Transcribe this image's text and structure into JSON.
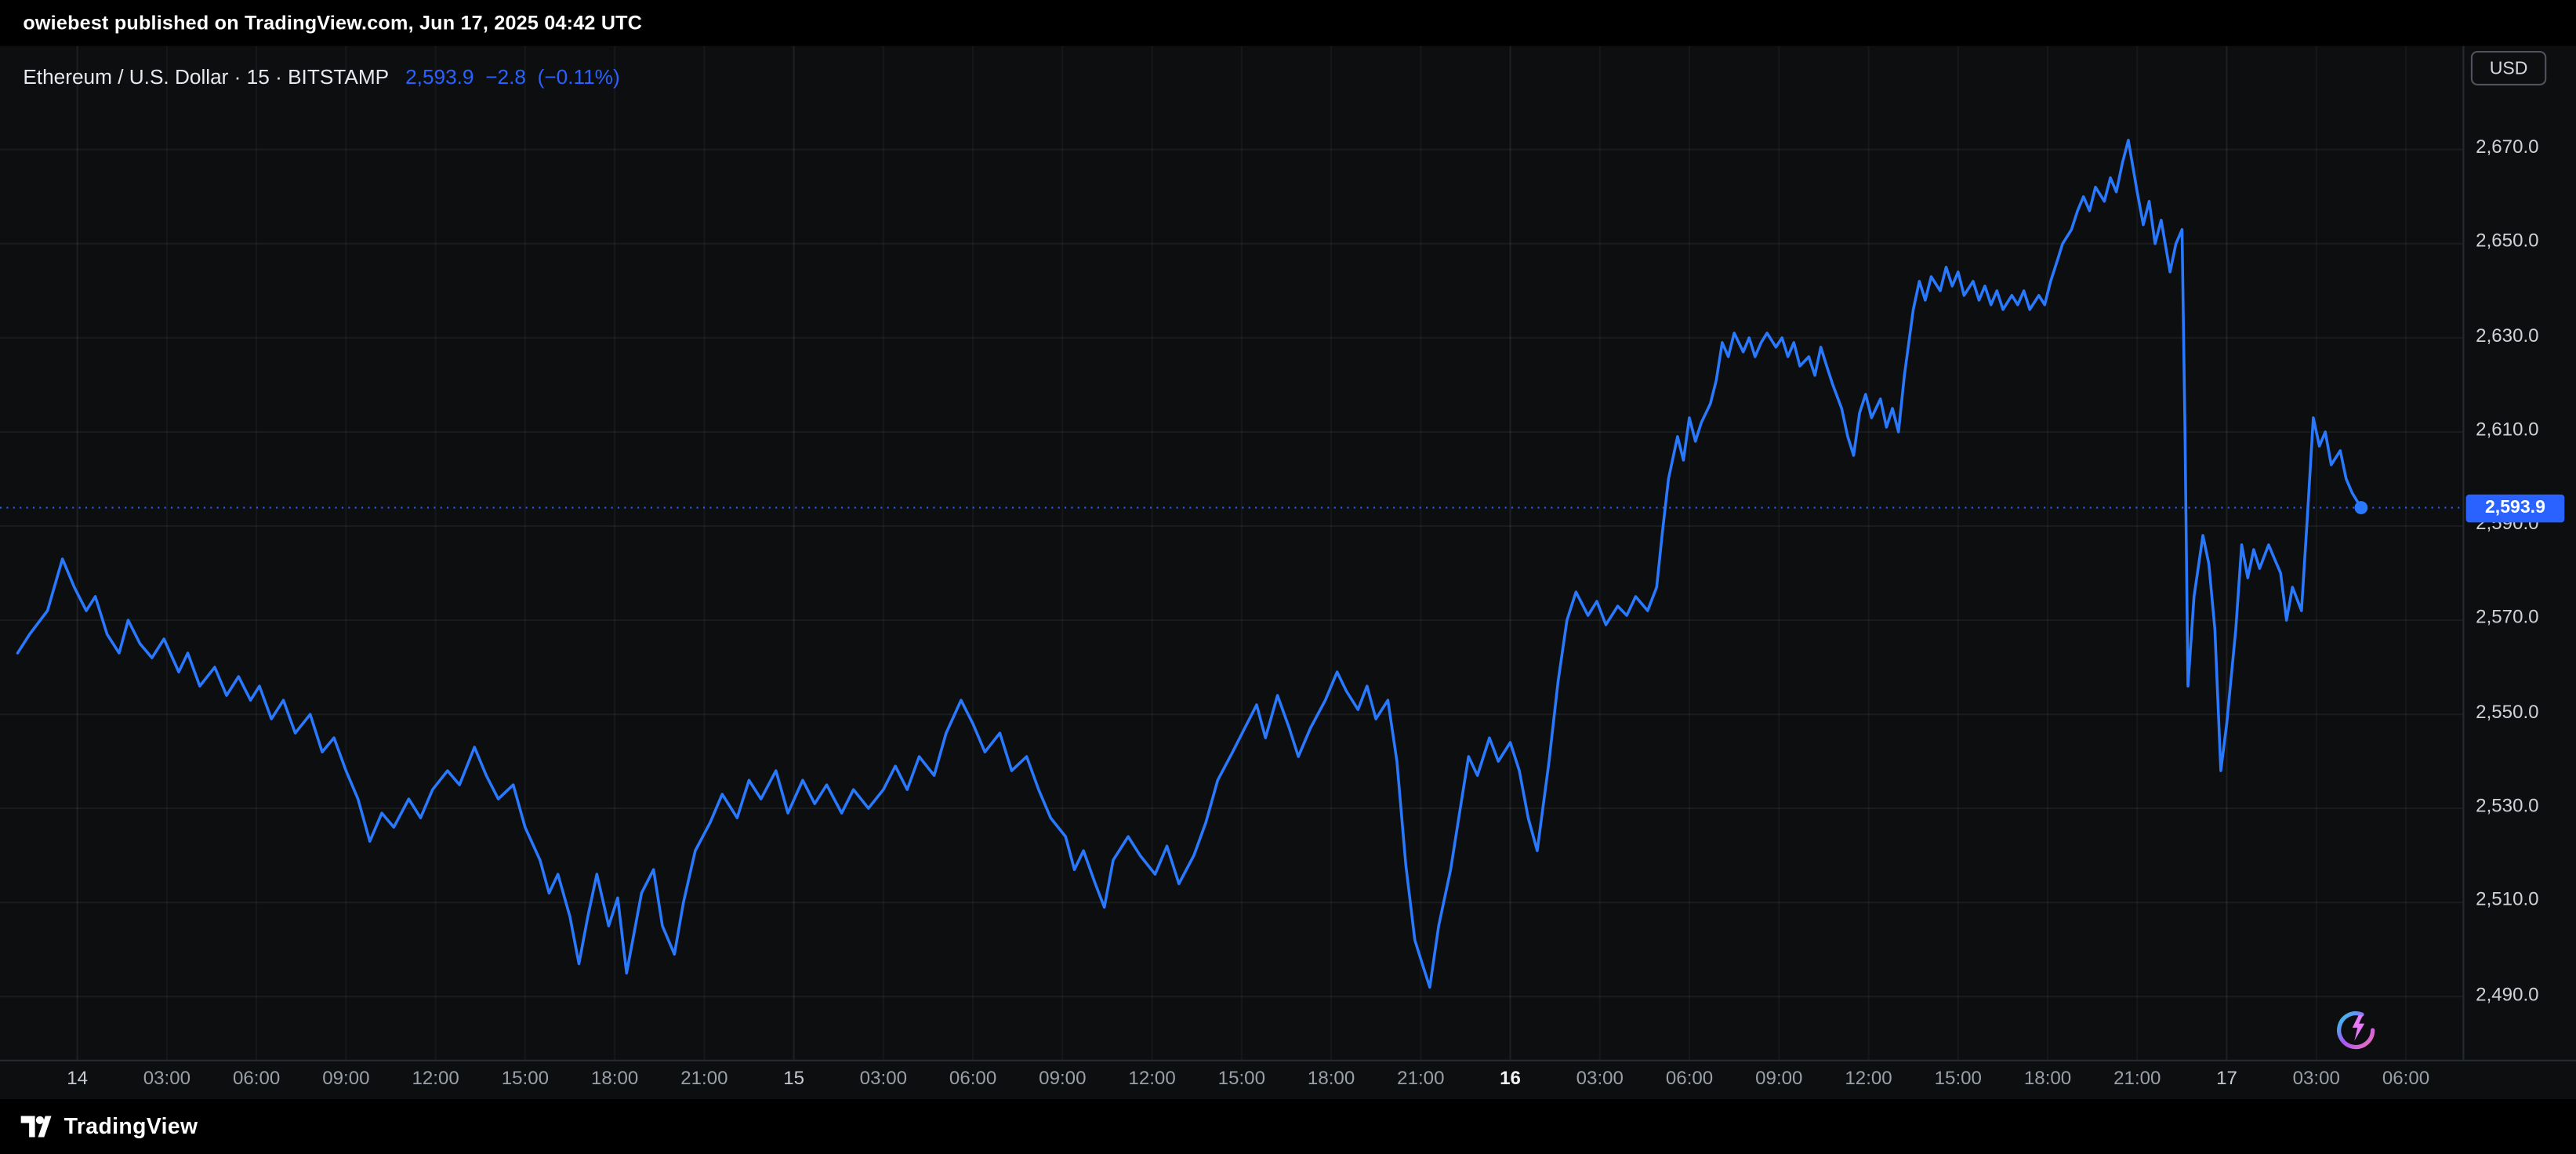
{
  "attribution": {
    "text": "owiebest published on TradingView.com, Jun 17, 2025 04:42 UTC"
  },
  "legend": {
    "symbol_title": "Ethereum / U.S. Dollar · 15 · BITSTAMP",
    "last_price": "2,593.9",
    "change": "−2.8",
    "change_percent": "(−0.11%)"
  },
  "price_axis": {
    "currency_label": "USD",
    "current_price_label": "2,593.9",
    "ticks": [
      {
        "value": 2670,
        "label": "2,670.0"
      },
      {
        "value": 2650,
        "label": "2,650.0"
      },
      {
        "value": 2630,
        "label": "2,630.0"
      },
      {
        "value": 2610,
        "label": "2,610.0"
      },
      {
        "value": 2590,
        "label": "2,590.0"
      },
      {
        "value": 2570,
        "label": "2,570.0"
      },
      {
        "value": 2550,
        "label": "2,550.0"
      },
      {
        "value": 2530,
        "label": "2,530.0"
      },
      {
        "value": 2510,
        "label": "2,510.0"
      },
      {
        "value": 2490,
        "label": "2,490.0"
      }
    ]
  },
  "time_axis": {
    "ticks": [
      {
        "t": 0,
        "label": "14",
        "day": true
      },
      {
        "t": 3,
        "label": "03:00"
      },
      {
        "t": 6,
        "label": "06:00"
      },
      {
        "t": 9,
        "label": "09:00"
      },
      {
        "t": 12,
        "label": "12:00"
      },
      {
        "t": 15,
        "label": "15:00"
      },
      {
        "t": 18,
        "label": "18:00"
      },
      {
        "t": 21,
        "label": "21:00"
      },
      {
        "t": 24,
        "label": "15",
        "day": true
      },
      {
        "t": 27,
        "label": "03:00"
      },
      {
        "t": 30,
        "label": "06:00"
      },
      {
        "t": 33,
        "label": "09:00"
      },
      {
        "t": 36,
        "label": "12:00"
      },
      {
        "t": 39,
        "label": "15:00"
      },
      {
        "t": 42,
        "label": "18:00"
      },
      {
        "t": 45,
        "label": "21:00"
      },
      {
        "t": 48,
        "label": "16",
        "day": true,
        "bold": true
      },
      {
        "t": 51,
        "label": "03:00"
      },
      {
        "t": 54,
        "label": "06:00"
      },
      {
        "t": 57,
        "label": "09:00"
      },
      {
        "t": 60,
        "label": "12:00"
      },
      {
        "t": 63,
        "label": "15:00"
      },
      {
        "t": 66,
        "label": "18:00"
      },
      {
        "t": 69,
        "label": "21:00"
      },
      {
        "t": 72,
        "label": "17",
        "day": true
      },
      {
        "t": 75,
        "label": "03:00"
      },
      {
        "t": 78,
        "label": "06:00"
      }
    ]
  },
  "footer": {
    "brand": "TradingView"
  },
  "colors": {
    "accent": "#2962FF",
    "line": "#2979FF",
    "price_tag_bg": "#2962FF",
    "background": "#0d0e10",
    "bar_background": "#000000"
  },
  "chart_data": {
    "type": "line",
    "title": "Ethereum / U.S. Dollar · 15 · BITSTAMP",
    "symbol": "ETHUSD",
    "interval_minutes": 15,
    "exchange": "BITSTAMP",
    "quote_currency": "USD",
    "last_price": 2593.9,
    "change": -2.8,
    "change_percent": -0.11,
    "x_unit": "hours since Jun 14 2025 00:00 UTC",
    "x_range": [
      -2.59,
      79.9
    ],
    "y_range": [
      2476.6,
      2692.0
    ],
    "y_ticks": [
      2490,
      2510,
      2530,
      2550,
      2570,
      2590,
      2610,
      2630,
      2650,
      2670
    ],
    "grid": true,
    "legend_position": "top-left",
    "series": [
      {
        "name": "ETH/USD close",
        "points": [
          [
            -2.0,
            2563
          ],
          [
            -1.6,
            2567
          ],
          [
            -1.0,
            2572
          ],
          [
            -0.5,
            2583
          ],
          [
            -0.1,
            2577
          ],
          [
            0.3,
            2572
          ],
          [
            0.6,
            2575
          ],
          [
            1.0,
            2567
          ],
          [
            1.4,
            2563
          ],
          [
            1.7,
            2570
          ],
          [
            2.1,
            2565
          ],
          [
            2.5,
            2562
          ],
          [
            2.9,
            2566
          ],
          [
            3.4,
            2559
          ],
          [
            3.7,
            2563
          ],
          [
            4.1,
            2556
          ],
          [
            4.6,
            2560
          ],
          [
            5.0,
            2554
          ],
          [
            5.4,
            2558
          ],
          [
            5.8,
            2553
          ],
          [
            6.1,
            2556
          ],
          [
            6.5,
            2549
          ],
          [
            6.9,
            2553
          ],
          [
            7.3,
            2546
          ],
          [
            7.8,
            2550
          ],
          [
            8.2,
            2542
          ],
          [
            8.6,
            2545
          ],
          [
            9.0,
            2538
          ],
          [
            9.4,
            2532
          ],
          [
            9.8,
            2523
          ],
          [
            10.2,
            2529
          ],
          [
            10.6,
            2526
          ],
          [
            11.1,
            2532
          ],
          [
            11.5,
            2528
          ],
          [
            11.9,
            2534
          ],
          [
            12.4,
            2538
          ],
          [
            12.8,
            2535
          ],
          [
            13.3,
            2543
          ],
          [
            13.7,
            2537
          ],
          [
            14.1,
            2532
          ],
          [
            14.6,
            2535
          ],
          [
            15.0,
            2526
          ],
          [
            15.5,
            2519
          ],
          [
            15.8,
            2512
          ],
          [
            16.1,
            2516
          ],
          [
            16.5,
            2507
          ],
          [
            16.8,
            2497
          ],
          [
            17.1,
            2507
          ],
          [
            17.4,
            2516
          ],
          [
            17.8,
            2505
          ],
          [
            18.1,
            2511
          ],
          [
            18.4,
            2495
          ],
          [
            18.9,
            2512
          ],
          [
            19.3,
            2517
          ],
          [
            19.6,
            2505
          ],
          [
            20.0,
            2499
          ],
          [
            20.3,
            2510
          ],
          [
            20.7,
            2521
          ],
          [
            21.2,
            2527
          ],
          [
            21.6,
            2533
          ],
          [
            22.1,
            2528
          ],
          [
            22.5,
            2536
          ],
          [
            22.9,
            2532
          ],
          [
            23.4,
            2538
          ],
          [
            23.8,
            2529
          ],
          [
            24.3,
            2536
          ],
          [
            24.7,
            2531
          ],
          [
            25.1,
            2535
          ],
          [
            25.6,
            2529
          ],
          [
            26.0,
            2534
          ],
          [
            26.5,
            2530
          ],
          [
            27.0,
            2534
          ],
          [
            27.4,
            2539
          ],
          [
            27.8,
            2534
          ],
          [
            28.2,
            2541
          ],
          [
            28.7,
            2537
          ],
          [
            29.1,
            2546
          ],
          [
            29.6,
            2553
          ],
          [
            30.0,
            2548
          ],
          [
            30.4,
            2542
          ],
          [
            30.9,
            2546
          ],
          [
            31.3,
            2538
          ],
          [
            31.8,
            2541
          ],
          [
            32.2,
            2534
          ],
          [
            32.6,
            2528
          ],
          [
            33.1,
            2524
          ],
          [
            33.4,
            2517
          ],
          [
            33.7,
            2521
          ],
          [
            34.1,
            2514
          ],
          [
            34.4,
            2509
          ],
          [
            34.7,
            2519
          ],
          [
            35.2,
            2524
          ],
          [
            35.6,
            2520
          ],
          [
            36.1,
            2516
          ],
          [
            36.5,
            2522
          ],
          [
            36.9,
            2514
          ],
          [
            37.4,
            2520
          ],
          [
            37.8,
            2527
          ],
          [
            38.2,
            2536
          ],
          [
            38.7,
            2542
          ],
          [
            39.1,
            2547
          ],
          [
            39.5,
            2552
          ],
          [
            39.8,
            2545
          ],
          [
            40.2,
            2554
          ],
          [
            40.6,
            2547
          ],
          [
            40.9,
            2541
          ],
          [
            41.3,
            2547
          ],
          [
            41.8,
            2553
          ],
          [
            42.2,
            2559
          ],
          [
            42.5,
            2555
          ],
          [
            42.9,
            2551
          ],
          [
            43.2,
            2556
          ],
          [
            43.5,
            2549
          ],
          [
            43.9,
            2553
          ],
          [
            44.2,
            2540
          ],
          [
            44.5,
            2518
          ],
          [
            44.8,
            2502
          ],
          [
            45.1,
            2496
          ],
          [
            45.3,
            2492
          ],
          [
            45.6,
            2505
          ],
          [
            46.0,
            2517
          ],
          [
            46.3,
            2529
          ],
          [
            46.6,
            2541
          ],
          [
            46.9,
            2537
          ],
          [
            47.3,
            2545
          ],
          [
            47.6,
            2540
          ],
          [
            48.0,
            2544
          ],
          [
            48.3,
            2538
          ],
          [
            48.6,
            2528
          ],
          [
            48.9,
            2521
          ],
          [
            49.3,
            2540
          ],
          [
            49.6,
            2557
          ],
          [
            49.9,
            2570
          ],
          [
            50.2,
            2576
          ],
          [
            50.6,
            2571
          ],
          [
            50.9,
            2574
          ],
          [
            51.2,
            2569
          ],
          [
            51.6,
            2573
          ],
          [
            51.9,
            2571
          ],
          [
            52.2,
            2575
          ],
          [
            52.6,
            2572
          ],
          [
            52.9,
            2577
          ],
          [
            53.1,
            2589
          ],
          [
            53.3,
            2600
          ],
          [
            53.6,
            2609
          ],
          [
            53.8,
            2604
          ],
          [
            54.0,
            2613
          ],
          [
            54.2,
            2608
          ],
          [
            54.4,
            2612
          ],
          [
            54.7,
            2616
          ],
          [
            54.9,
            2621
          ],
          [
            55.1,
            2629
          ],
          [
            55.3,
            2626
          ],
          [
            55.5,
            2631
          ],
          [
            55.8,
            2627
          ],
          [
            56.0,
            2630
          ],
          [
            56.2,
            2626
          ],
          [
            56.4,
            2629
          ],
          [
            56.6,
            2631
          ],
          [
            56.9,
            2628
          ],
          [
            57.1,
            2630
          ],
          [
            57.3,
            2626
          ],
          [
            57.5,
            2629
          ],
          [
            57.7,
            2624
          ],
          [
            58.0,
            2626
          ],
          [
            58.2,
            2622
          ],
          [
            58.4,
            2628
          ],
          [
            58.6,
            2624
          ],
          [
            58.8,
            2620
          ],
          [
            59.1,
            2615
          ],
          [
            59.3,
            2609
          ],
          [
            59.5,
            2605
          ],
          [
            59.7,
            2614
          ],
          [
            59.9,
            2618
          ],
          [
            60.1,
            2613
          ],
          [
            60.4,
            2617
          ],
          [
            60.6,
            2611
          ],
          [
            60.8,
            2615
          ],
          [
            61.0,
            2610
          ],
          [
            61.2,
            2622
          ],
          [
            61.5,
            2636
          ],
          [
            61.7,
            2642
          ],
          [
            61.9,
            2638
          ],
          [
            62.1,
            2643
          ],
          [
            62.4,
            2640
          ],
          [
            62.6,
            2645
          ],
          [
            62.8,
            2641
          ],
          [
            63.0,
            2644
          ],
          [
            63.2,
            2639
          ],
          [
            63.5,
            2642
          ],
          [
            63.7,
            2638
          ],
          [
            63.9,
            2641
          ],
          [
            64.1,
            2637
          ],
          [
            64.3,
            2640
          ],
          [
            64.5,
            2636
          ],
          [
            64.8,
            2639
          ],
          [
            65.0,
            2637
          ],
          [
            65.2,
            2640
          ],
          [
            65.4,
            2636
          ],
          [
            65.7,
            2639
          ],
          [
            65.9,
            2637
          ],
          [
            66.1,
            2642
          ],
          [
            66.3,
            2646
          ],
          [
            66.5,
            2650
          ],
          [
            66.8,
            2653
          ],
          [
            67.0,
            2657
          ],
          [
            67.2,
            2660
          ],
          [
            67.4,
            2657
          ],
          [
            67.6,
            2662
          ],
          [
            67.9,
            2659
          ],
          [
            68.1,
            2664
          ],
          [
            68.3,
            2661
          ],
          [
            68.5,
            2667
          ],
          [
            68.7,
            2672
          ],
          [
            69.0,
            2661
          ],
          [
            69.2,
            2654
          ],
          [
            69.4,
            2659
          ],
          [
            69.6,
            2650
          ],
          [
            69.8,
            2655
          ],
          [
            70.1,
            2644
          ],
          [
            70.3,
            2650
          ],
          [
            70.5,
            2653
          ],
          [
            70.6,
            2610
          ],
          [
            70.7,
            2556
          ],
          [
            70.9,
            2575
          ],
          [
            71.2,
            2588
          ],
          [
            71.4,
            2582
          ],
          [
            71.6,
            2568
          ],
          [
            71.8,
            2538
          ],
          [
            72.0,
            2548
          ],
          [
            72.3,
            2568
          ],
          [
            72.5,
            2586
          ],
          [
            72.7,
            2579
          ],
          [
            72.9,
            2585
          ],
          [
            73.1,
            2581
          ],
          [
            73.4,
            2586
          ],
          [
            73.6,
            2583
          ],
          [
            73.8,
            2580
          ],
          [
            74.0,
            2570
          ],
          [
            74.2,
            2577
          ],
          [
            74.5,
            2572
          ],
          [
            74.7,
            2592
          ],
          [
            74.9,
            2613
          ],
          [
            75.1,
            2607
          ],
          [
            75.3,
            2610
          ],
          [
            75.5,
            2603
          ],
          [
            75.8,
            2606
          ],
          [
            76.0,
            2600
          ],
          [
            76.2,
            2597
          ],
          [
            76.5,
            2593.9
          ]
        ]
      }
    ]
  }
}
